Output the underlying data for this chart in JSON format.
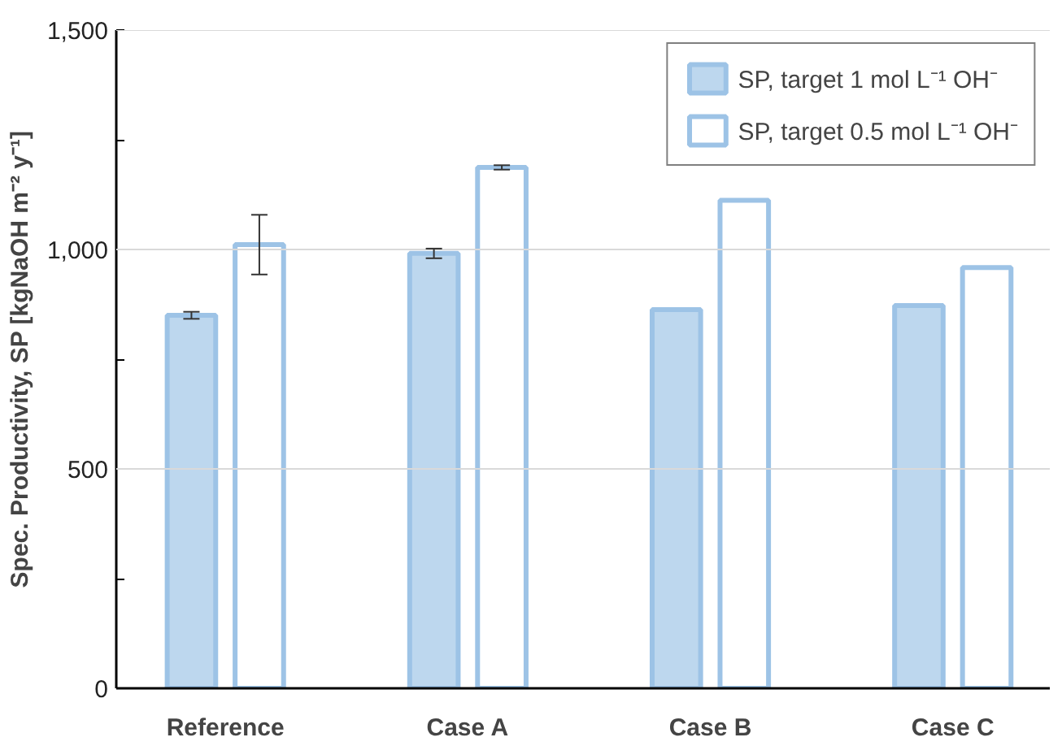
{
  "chart_data": {
    "type": "bar",
    "ylabel": "Spec. Productivity, SP [kgNaOH m⁻² y⁻¹]",
    "categories": [
      "Reference",
      "Case A",
      "Case B",
      "Case C"
    ],
    "series": [
      {
        "name": "SP, target 1 mol L⁻¹ OH⁻",
        "color": "#bdd7ee",
        "values": [
          850,
          991,
          863,
          872
        ],
        "errors": [
          8,
          11,
          null,
          null
        ]
      },
      {
        "name": "SP, target 0.5 mol L⁻¹ OH⁻",
        "color": "#ffffff",
        "values": [
          1011,
          1187,
          1112,
          959
        ],
        "errors": [
          68,
          5,
          null,
          null
        ]
      }
    ],
    "ylim": [
      0,
      1500
    ],
    "yticks": [
      0,
      {
        "value": 250,
        "label": null
      },
      500,
      {
        "value": 750,
        "label": null
      },
      {
        "value": 1000,
        "label": "1,000"
      },
      {
        "value": 1250,
        "label": null
      },
      {
        "value": 1500,
        "label": "1,500"
      }
    ],
    "grid": "y",
    "legend": "top right"
  }
}
